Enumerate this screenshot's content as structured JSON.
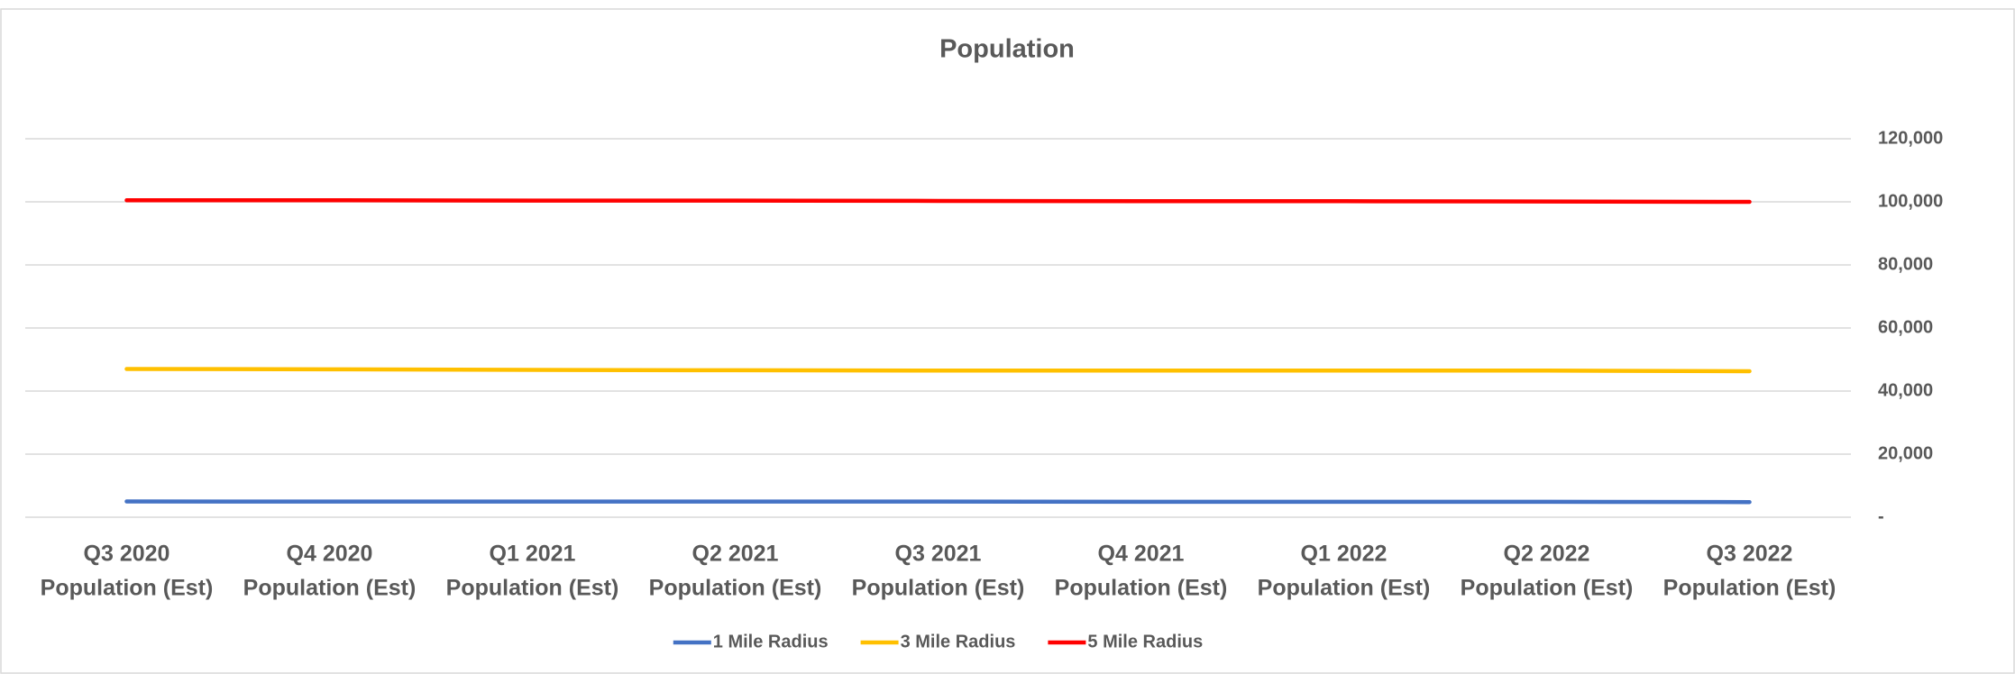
{
  "chart_data": {
    "type": "line",
    "title": "Population",
    "categories": [
      [
        "Q3 2020",
        "Population (Est)"
      ],
      [
        "Q4 2020",
        "Population (Est)"
      ],
      [
        "Q1 2021",
        "Population (Est)"
      ],
      [
        "Q2 2021",
        "Population (Est)"
      ],
      [
        "Q3 2021",
        "Population (Est)"
      ],
      [
        "Q4 2021",
        "Population (Est)"
      ],
      [
        "Q1 2022",
        "Population (Est)"
      ],
      [
        "Q2 2022",
        "Population (Est)"
      ],
      [
        "Q3 2022",
        "Population (Est)"
      ]
    ],
    "series": [
      {
        "name": "1 Mile Radius",
        "color": "#4472c4",
        "values": [
          5000,
          4950,
          4950,
          4950,
          4950,
          4900,
          4900,
          4900,
          4800
        ]
      },
      {
        "name": "3 Mile Radius",
        "color": "#ffc000",
        "values": [
          47000,
          46900,
          46700,
          46600,
          46500,
          46500,
          46500,
          46500,
          46300
        ]
      },
      {
        "name": "5 Mile Radius",
        "color": "#ff0000",
        "values": [
          100500,
          100500,
          100400,
          100400,
          100300,
          100200,
          100200,
          100100,
          100000
        ]
      }
    ],
    "ylim": [
      0,
      120000
    ],
    "yticks": [
      {
        "value": 0,
        "label": "-"
      },
      {
        "value": 20000,
        "label": "20,000"
      },
      {
        "value": 40000,
        "label": "40,000"
      },
      {
        "value": 60000,
        "label": "60,000"
      },
      {
        "value": 80000,
        "label": "80,000"
      },
      {
        "value": 100000,
        "label": "100,000"
      },
      {
        "value": 120000,
        "label": "120,000"
      }
    ],
    "grid": true,
    "y_axis_side": "right",
    "legend": "bottom"
  }
}
